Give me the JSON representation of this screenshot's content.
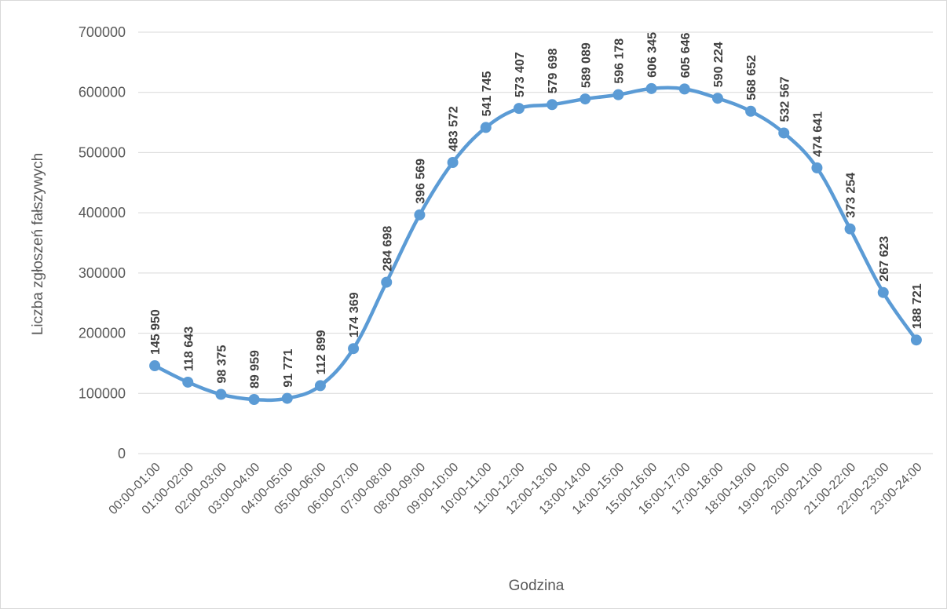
{
  "chart_data": {
    "type": "line",
    "title": "",
    "xlabel": "Godzina",
    "ylabel": "Liczba zgłoszeń fałszywych",
    "ylim": [
      0,
      700000
    ],
    "yticks": [
      0,
      100000,
      200000,
      300000,
      400000,
      500000,
      600000,
      700000
    ],
    "ytick_labels": [
      "0",
      "100000",
      "200000",
      "300000",
      "400000",
      "500000",
      "600000",
      "700000"
    ],
    "grid": true,
    "legend": "none",
    "color": "#5b9bd5",
    "categories": [
      "00:00-01:00",
      "01:00-02:00",
      "02:00-03:00",
      "03:00-04:00",
      "04:00-05:00",
      "05:00-06:00",
      "06:00-07:00",
      "07:00-08:00",
      "08:00-09:00",
      "09:00-10:00",
      "10:00-11:00",
      "11:00-12:00",
      "12:00-13:00",
      "13:00-14:00",
      "14:00-15:00",
      "15:00-16:00",
      "16:00-17:00",
      "17:00-18:00",
      "18:00-19:00",
      "19:00-20:00",
      "20:00-21:00",
      "21:00-22:00",
      "22:00-23:00",
      "23:00-24:00"
    ],
    "values": [
      145950,
      118643,
      98375,
      89959,
      91771,
      112899,
      174369,
      284698,
      396569,
      483572,
      541745,
      573407,
      579698,
      589089,
      596178,
      606345,
      605646,
      590224,
      568652,
      532567,
      474641,
      373254,
      267623,
      188721
    ],
    "value_labels": [
      "145 950",
      "118 643",
      "98 375",
      "89 959",
      "91 771",
      "112 899",
      "174 369",
      "284 698",
      "396 569",
      "483 572",
      "541 745",
      "573 407",
      "579 698",
      "589 089",
      "596 178",
      "606 345",
      "605 646",
      "590 224",
      "568 652",
      "532 567",
      "474 641",
      "373 254",
      "267 623",
      "188 721"
    ]
  }
}
